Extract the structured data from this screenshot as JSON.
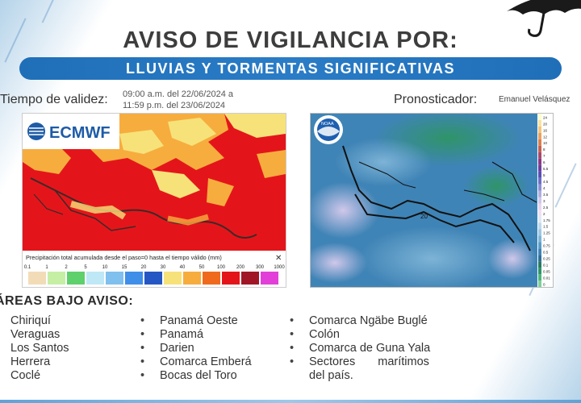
{
  "title": "AVISO DE VIGILANCIA POR:",
  "banner": "LLUVIAS Y TORMENTAS SIGNIFICATIVAS",
  "validity": {
    "label": "Tiempo de validez:",
    "from": "09:00 a.m. del 22/06/2024 a",
    "to": "11:59 p.m. del 23/06/2024"
  },
  "forecaster": {
    "label": "Pronosticador:",
    "name": "Emanuel Velásquez"
  },
  "map_ecmwf": {
    "logo": "ECMWF",
    "caption": "Precipitación total acumulada desde el paso=0 hasta el tiempo válido (mm)",
    "close_glyph": "✕",
    "scale_labels": [
      "0.1",
      "1",
      "2",
      "5",
      "10",
      "15",
      "20",
      "30",
      "40",
      "50",
      "100",
      "200",
      "300",
      "1000"
    ],
    "scale_colors": [
      "#f2dcb8",
      "#c6efa6",
      "#5ed06c",
      "#bfe8f6",
      "#7fc0ee",
      "#3f8ee8",
      "#2557c4",
      "#f7e27a",
      "#f6ad3e",
      "#ef6a1d",
      "#e4151a",
      "#a01627",
      "#e23fd9"
    ]
  },
  "map_noaa": {
    "logo": "NOAA",
    "scale_labels": [
      "24",
      "20",
      "16",
      "12",
      "10",
      "8",
      "7",
      "6",
      "5.5",
      "5",
      "4.5",
      "4",
      "3.5",
      "3",
      "2.5",
      "2",
      "1.75",
      "1.5",
      "1.25",
      "1",
      "0.75",
      "0.5",
      "0.25",
      "0.1",
      "0.05",
      "0.01",
      "0"
    ],
    "scale_colors": [
      "#fdfdc9",
      "#f8e3a0",
      "#f3c57e",
      "#e9a260",
      "#d98050",
      "#c46050",
      "#a84868",
      "#8a3a86",
      "#6e3d9f",
      "#5b4db3",
      "#6b6fc4",
      "#8d8fd2",
      "#b0addf",
      "#d0c8ea",
      "#e7d6ef",
      "#f1dff2",
      "#dfe9f4",
      "#bfd9ec",
      "#9ec7e2",
      "#7db3d6",
      "#5c9cc8",
      "#3f84b6",
      "#2f6f9c",
      "#2b7a62",
      "#2f9468",
      "#4fb47a",
      "#7fd09a"
    ],
    "contour_label": "20"
  },
  "areas": {
    "heading": "ÁREAS BAJO AVISO:",
    "col1": [
      "Chiriquí",
      "Veraguas",
      "Los Santos",
      "Herrera",
      "Coclé"
    ],
    "col2": [
      "Panamá Oeste",
      "Panamá",
      "Darien",
      "Comarca Emberá",
      "Bocas del Toro"
    ],
    "col3": [
      "Comarca Ngäbe Buglé",
      "Colón",
      "Comarca de Guna Yala",
      "Sectores marítimos",
      "del país."
    ]
  }
}
